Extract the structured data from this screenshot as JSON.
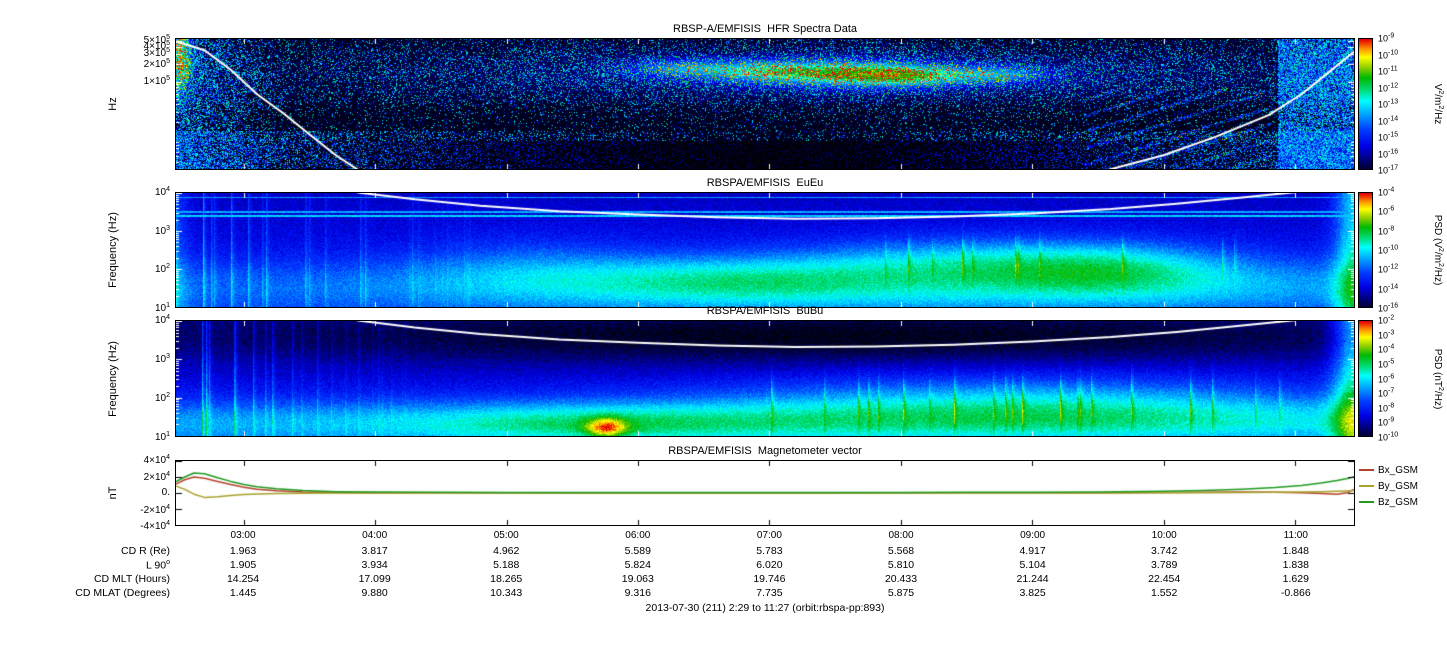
{
  "footer": "2013-07-30 (211) 2:29 to 11:27 (orbit:rbspa-pp:893)",
  "x_axis": {
    "start_hour": 2.483,
    "end_hour": 11.45,
    "ticks": [
      {
        "hour": 3,
        "label": "03:00"
      },
      {
        "hour": 4,
        "label": "04:00"
      },
      {
        "hour": 5,
        "label": "05:00"
      },
      {
        "hour": 6,
        "label": "06:00"
      },
      {
        "hour": 7,
        "label": "07:00"
      },
      {
        "hour": 8,
        "label": "08:00"
      },
      {
        "hour": 9,
        "label": "09:00"
      },
      {
        "hour": 10,
        "label": "10:00"
      },
      {
        "hour": 11,
        "label": "11:00"
      }
    ]
  },
  "chart_data": [
    {
      "id": "hfr",
      "type": "heatmap",
      "title": "RBSP-A/EMFISIS  HFR Spectra Data",
      "ylabel": "Hz",
      "yscale": "log",
      "yrange_hz": [
        3000,
        550000
      ],
      "yticks": [
        {
          "value": 500000,
          "label": "5×10^5"
        },
        {
          "value": 400000,
          "label": "4×10^5"
        },
        {
          "value": 300000,
          "label": "3×10^5"
        },
        {
          "value": 200000,
          "label": "2×10^5"
        },
        {
          "value": 100000,
          "label": "1×10^5"
        }
      ],
      "colorbar": {
        "label": "V^2/m^2/Hz",
        "range": [
          1e-17,
          1e-09
        ],
        "tick_labels": [
          "10^-9",
          "10^-10",
          "10^-11",
          "10^-12",
          "10^-13",
          "10^-14",
          "10^-15",
          "10^-16",
          "10^-17"
        ]
      },
      "overlay_line": {
        "name": "plasma-frequency-trace",
        "color": "#ffffff",
        "points": [
          [
            2.483,
            500000
          ],
          [
            2.7,
            350000
          ],
          [
            2.9,
            160000
          ],
          [
            3.1,
            60000
          ],
          [
            3.3,
            28000
          ],
          [
            3.5,
            12000
          ],
          [
            3.7,
            5200
          ],
          [
            3.9,
            2600
          ],
          [
            4.3,
            1600
          ],
          [
            5.0,
            1100
          ],
          [
            6.0,
            900
          ],
          [
            7.0,
            900
          ],
          [
            8.0,
            1100
          ],
          [
            8.8,
            1600
          ],
          [
            9.5,
            2600
          ],
          [
            10.0,
            5200
          ],
          [
            10.4,
            11000
          ],
          [
            10.8,
            26000
          ],
          [
            11.05,
            60000
          ],
          [
            11.25,
            140000
          ],
          [
            11.45,
            330000
          ]
        ]
      }
    },
    {
      "id": "euEu",
      "type": "heatmap",
      "title": "RBSPA/EMFISIS  EuEu",
      "ylabel": "Frequency (Hz)",
      "yscale": "log",
      "yrange_hz": [
        10,
        10000
      ],
      "yticks": [
        {
          "value": 10000,
          "label": "10^4"
        },
        {
          "value": 1000,
          "label": "10^3"
        },
        {
          "value": 100,
          "label": "10^2"
        },
        {
          "value": 10,
          "label": "10^1"
        }
      ],
      "colorbar": {
        "label": "PSD (V^2/m^2/Hz)",
        "range": [
          1e-16,
          0.0001
        ],
        "tick_labels": [
          "10^-4",
          "10^-6",
          "10^-8",
          "10^-10",
          "10^-12",
          "10^-14",
          "10^-16"
        ]
      },
      "overlay_line": {
        "name": "electron-cyclotron-trace",
        "color": "#ffffff",
        "points": [
          [
            3.5,
            16000
          ],
          [
            3.9,
            10000
          ],
          [
            4.3,
            6800
          ],
          [
            4.8,
            4600
          ],
          [
            5.4,
            3300
          ],
          [
            6.0,
            2700
          ],
          [
            6.6,
            2300
          ],
          [
            7.2,
            2100
          ],
          [
            7.8,
            2150
          ],
          [
            8.4,
            2400
          ],
          [
            9.0,
            2900
          ],
          [
            9.6,
            3800
          ],
          [
            10.1,
            5200
          ],
          [
            10.6,
            7600
          ],
          [
            11.0,
            10500
          ],
          [
            11.45,
            18000
          ]
        ]
      }
    },
    {
      "id": "buBu",
      "type": "heatmap",
      "title": "RBSPA/EMFISIS  BuBu",
      "ylabel": "Frequency (Hz)",
      "yscale": "log",
      "yrange_hz": [
        10,
        10000
      ],
      "yticks": [
        {
          "value": 10000,
          "label": "10^4"
        },
        {
          "value": 1000,
          "label": "10^3"
        },
        {
          "value": 100,
          "label": "10^2"
        },
        {
          "value": 10,
          "label": "10^1"
        }
      ],
      "colorbar": {
        "label": "PSD (nT^2/Hz)",
        "range": [
          1e-10,
          0.01
        ],
        "tick_labels": [
          "10^-2",
          "10^-3",
          "10^-4",
          "10^-5",
          "10^-6",
          "10^-7",
          "10^-8",
          "10^-9",
          "10^-10"
        ]
      },
      "overlay_line": {
        "name": "electron-cyclotron-trace",
        "color": "#ffffff",
        "points": [
          [
            3.5,
            16000
          ],
          [
            3.9,
            10000
          ],
          [
            4.3,
            6800
          ],
          [
            4.8,
            4600
          ],
          [
            5.4,
            3300
          ],
          [
            6.0,
            2700
          ],
          [
            6.6,
            2300
          ],
          [
            7.2,
            2100
          ],
          [
            7.8,
            2150
          ],
          [
            8.4,
            2400
          ],
          [
            9.0,
            2900
          ],
          [
            9.6,
            3800
          ],
          [
            10.1,
            5200
          ],
          [
            10.6,
            7600
          ],
          [
            11.0,
            10500
          ],
          [
            11.45,
            18000
          ]
        ]
      }
    },
    {
      "id": "mag",
      "type": "line",
      "title": "RBSPA/EMFISIS  Magnetometer vector",
      "ylabel": "nT",
      "yrange": [
        -40000,
        40000
      ],
      "yticks": [
        {
          "value": 40000,
          "label": "4×10^4"
        },
        {
          "value": 20000,
          "label": "2×10^4"
        },
        {
          "value": 0,
          "label": "0."
        },
        {
          "value": -20000,
          "label": "-2×10^4"
        },
        {
          "value": -40000,
          "label": "-4×10^4"
        }
      ],
      "x_hours": [
        2.48,
        2.55,
        2.62,
        2.7,
        2.8,
        2.9,
        3.0,
        3.1,
        3.25,
        3.45,
        3.7,
        4.0,
        4.5,
        5.0,
        5.5,
        6.0,
        6.5,
        7.0,
        7.5,
        8.0,
        8.5,
        9.0,
        9.5,
        10.0,
        10.3,
        10.6,
        10.85,
        11.05,
        11.2,
        11.32,
        11.4,
        11.45
      ],
      "series": [
        {
          "name": "Bx_GSM",
          "color": "#b5432b",
          "y": [
            11000,
            16500,
            20000,
            18500,
            14500,
            10500,
            7200,
            4800,
            2800,
            1400,
            700,
            400,
            250,
            180,
            140,
            120,
            110,
            115,
            130,
            160,
            210,
            300,
            450,
            700,
            950,
            1100,
            900,
            300,
            -700,
            -1500,
            400,
            4500
          ]
        },
        {
          "name": "By_GSM",
          "color": "#a8a22a",
          "y": [
            9000,
            4500,
            -1500,
            -5500,
            -4800,
            -3200,
            -1900,
            -1100,
            -500,
            -200,
            -80,
            -30,
            0,
            0,
            0,
            0,
            0,
            0,
            0,
            0,
            0,
            30,
            80,
            180,
            300,
            500,
            800,
            1200,
            1700,
            2200,
            2600,
            3000
          ]
        },
        {
          "name": "Bz_GSM",
          "color": "#1f9a1f",
          "y": [
            14000,
            20000,
            25000,
            24000,
            19000,
            14500,
            10500,
            7800,
            5200,
            3000,
            1700,
            1100,
            800,
            700,
            650,
            620,
            600,
            620,
            650,
            700,
            800,
            1000,
            1400,
            2200,
            3200,
            4800,
            7000,
            9500,
            12500,
            15500,
            18000,
            20500
          ]
        }
      ],
      "legend_position": "right"
    }
  ],
  "annotations": {
    "rows": [
      {
        "label": "CD R (Re)",
        "values": [
          "1.963",
          "3.817",
          "4.962",
          "5.589",
          "5.783",
          "5.568",
          "4.917",
          "3.742",
          "1.848"
        ]
      },
      {
        "label": "L 90^o",
        "values": [
          "1.905",
          "3.934",
          "5.188",
          "5.824",
          "6.020",
          "5.810",
          "5.104",
          "3.789",
          "1.838"
        ]
      },
      {
        "label": "CD MLT (Hours)",
        "values": [
          "14.254",
          "17.099",
          "18.265",
          "19.063",
          "19.746",
          "20.433",
          "21.244",
          "22.454",
          "1.629"
        ]
      },
      {
        "label": "CD MLAT (Degrees)",
        "values": [
          "1.445",
          "9.880",
          "10.343",
          "9.316",
          "7.735",
          "5.875",
          "3.825",
          "1.552",
          "-0.866"
        ]
      }
    ]
  }
}
